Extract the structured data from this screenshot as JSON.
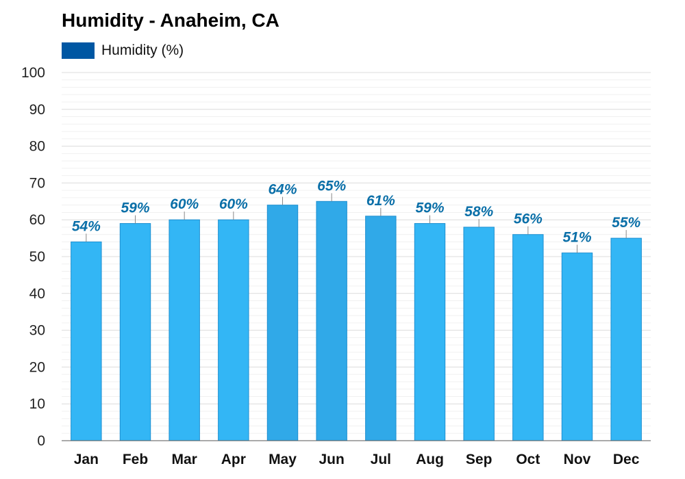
{
  "chart_data": {
    "type": "bar",
    "title": "Humidity - Anaheim, CA",
    "legend": [
      {
        "label": "Humidity (%)",
        "color": "#0057a3"
      }
    ],
    "categories": [
      "Jan",
      "Feb",
      "Mar",
      "Apr",
      "May",
      "Jun",
      "Jul",
      "Aug",
      "Sep",
      "Oct",
      "Nov",
      "Dec"
    ],
    "series": [
      {
        "name": "Humidity (%)",
        "values": [
          54,
          59,
          60,
          60,
          64,
          65,
          61,
          59,
          58,
          56,
          51,
          55
        ]
      }
    ],
    "data_labels": [
      "54%",
      "59%",
      "60%",
      "60%",
      "64%",
      "65%",
      "61%",
      "59%",
      "58%",
      "56%",
      "51%",
      "55%"
    ],
    "ylim": [
      0,
      100
    ],
    "yticks": [
      0,
      10,
      20,
      30,
      40,
      50,
      60,
      70,
      80,
      90,
      100
    ],
    "grid": true,
    "colors": {
      "bar": "#33b6f5",
      "bar_highlight": "#30a9e8",
      "bar_edge": "#1e8fd0",
      "label": "#0a6fa8",
      "grid": "#e6e6e6"
    },
    "highlight_months": [
      "May",
      "Jun",
      "Jul"
    ]
  }
}
